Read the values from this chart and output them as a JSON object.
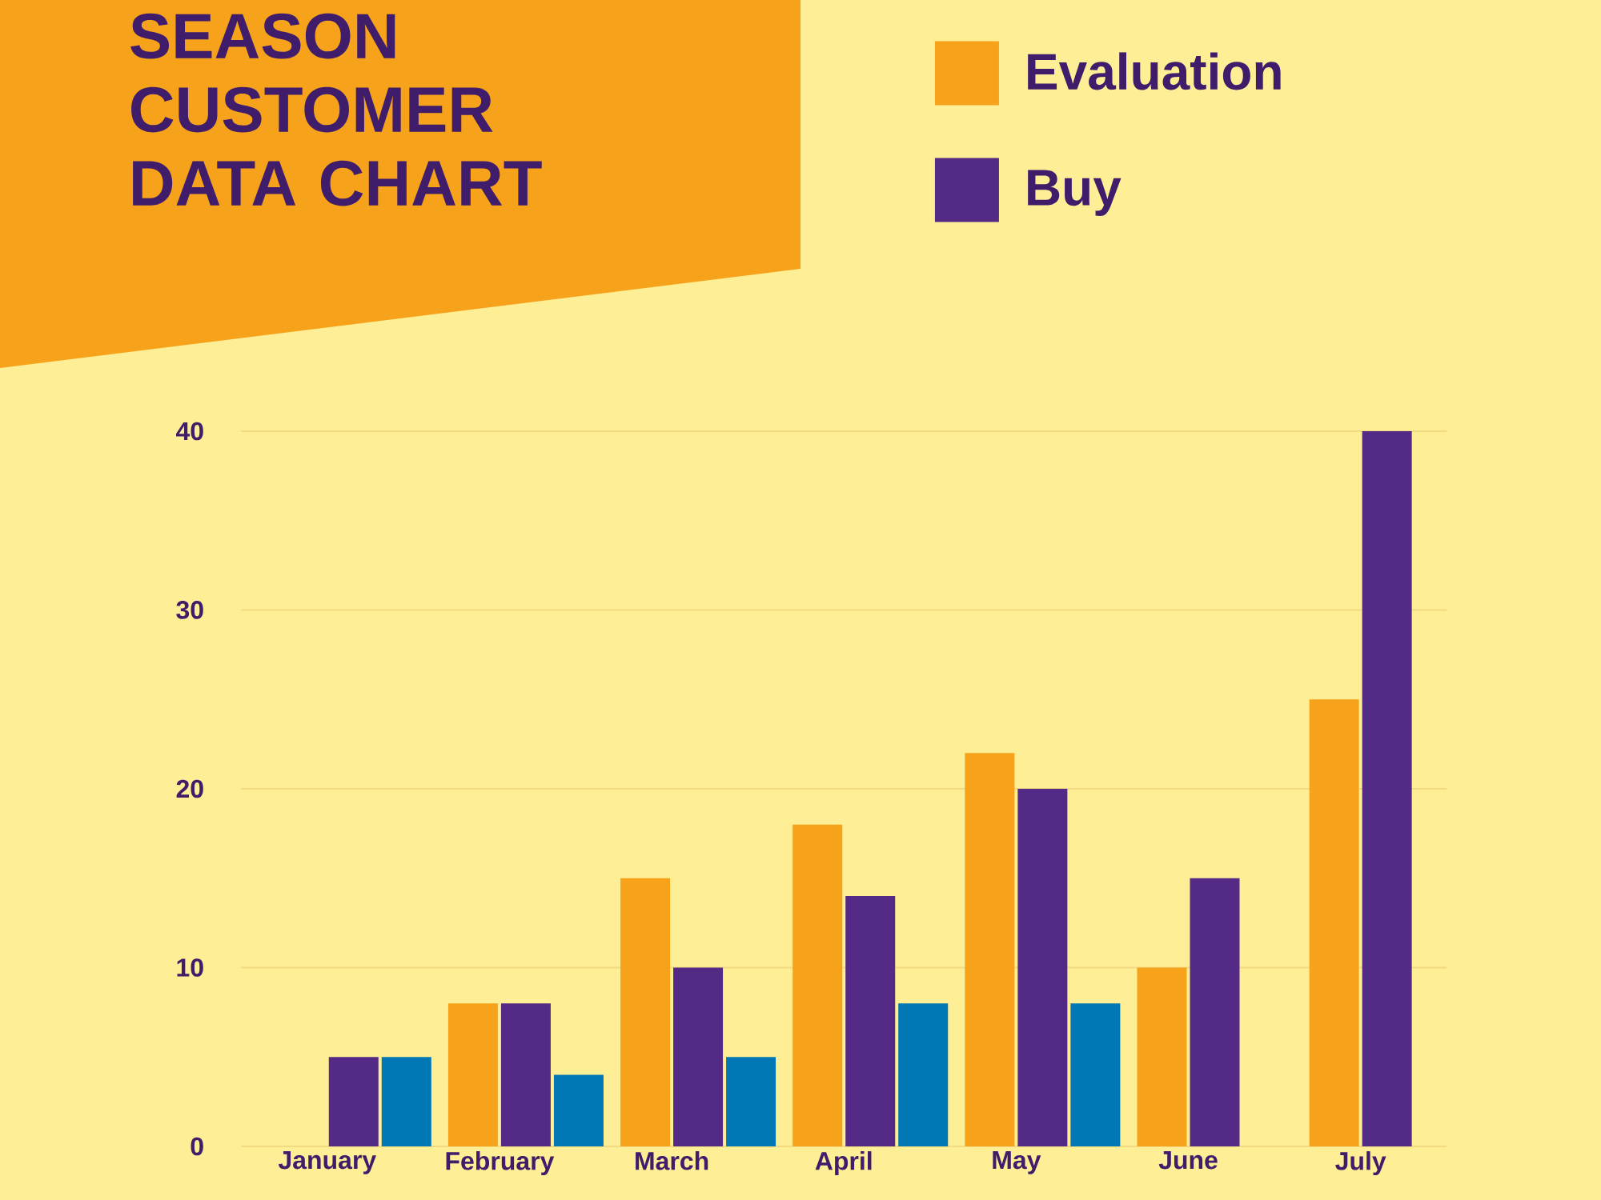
{
  "chart_data": {
    "type": "bar",
    "title": "SEASON CUSTOMER DATA CHART",
    "categories": [
      "January",
      "February",
      "March",
      "April",
      "May",
      "June",
      "July"
    ],
    "series": [
      {
        "name": "Evaluation",
        "color": "#f7a21b",
        "values": [
          null,
          8,
          15,
          18,
          22,
          10,
          25
        ]
      },
      {
        "name": "Buy",
        "color": "#532a85",
        "values": [
          5,
          8,
          10,
          14,
          20,
          15,
          40
        ]
      },
      {
        "color": "#0277b5",
        "values": [
          5,
          4,
          5,
          8,
          8,
          null,
          null
        ]
      }
    ],
    "ylim": [
      0,
      40
    ],
    "yticks": [
      0,
      10,
      20,
      30,
      40
    ],
    "grid": "y",
    "legend": "top right"
  }
}
